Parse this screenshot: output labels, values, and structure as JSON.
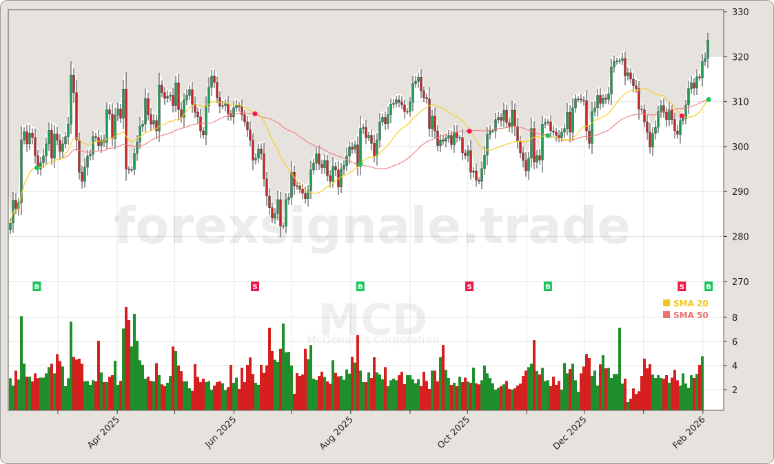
{
  "chart_data": {
    "type": "candlestick",
    "ticker": "MCD",
    "company": "McDonald's Corporation",
    "watermark": "forexsignale.trade",
    "price_axis": {
      "ticks": [
        330,
        320,
        310,
        300,
        290,
        280,
        270
      ],
      "lim": [
        265,
        330
      ]
    },
    "volume_axis": {
      "ticks": [
        8,
        6,
        4,
        2
      ],
      "unit_multiplier": 1000000
    },
    "x_tick_labels": [
      "Apr 2025",
      "Jun 2025",
      "Aug 2025",
      "Oct 2025",
      "Dec 2025",
      "Feb 2026"
    ],
    "grid": true,
    "legend": {
      "placement": "lower-right of price panel",
      "items": [
        {
          "name": "SMA 20",
          "color": "#f5c518"
        },
        {
          "name": "SMA 50",
          "color": "#f07070"
        }
      ]
    },
    "colors": {
      "up": "#1f9d55",
      "down": "#c62828",
      "vol_up": "#1e8f2a",
      "vol_down": "#d61f1f",
      "buy": "#19c45a",
      "sell": "#f0174a",
      "sma20": "#f5d020",
      "sma50": "#f07a7a"
    },
    "close": [
      283.0,
      288.0,
      286.2,
      287.5,
      301.5,
      303.3,
      300.6,
      303.0,
      302.0,
      298.0,
      295.0,
      296.4,
      297.9,
      300.6,
      303.6,
      297.4,
      302.8,
      301.4,
      298.9,
      300.6,
      302.2,
      305.0,
      315.9,
      312.0,
      301.5,
      294.3,
      292.3,
      295.4,
      297.9,
      298.3,
      302.2,
      302.0,
      300.2,
      301.5,
      300.9,
      308.2,
      307.2,
      301.8,
      307.0,
      308.4,
      306.3,
      312.8,
      295.0,
      294.9,
      294.9,
      298.5,
      301.0,
      304.5,
      305.0,
      310.7,
      307.1,
      305.0,
      305.8,
      303.5,
      313.7,
      312.0,
      310.7,
      311.2,
      311.4,
      309.1,
      314.2,
      308.2,
      306.5,
      310.4,
      311.4,
      312.7,
      309.4,
      307.6,
      306.6,
      303.5,
      302.6,
      309.1,
      313.2,
      315.7,
      314.3,
      310.9,
      309.0,
      309.1,
      309.6,
      307.3,
      306.6,
      308.6,
      309.1,
      308.9,
      307.1,
      305.5,
      303.7,
      301.4,
      297.0,
      297.4,
      299.5,
      298.4,
      292.8,
      289.0,
      286.4,
      284.1,
      285.1,
      288.2,
      282.3,
      282.3,
      288.2,
      288.7,
      294.3,
      291.3,
      291.2,
      290.5,
      289.6,
      288.4,
      290.2,
      294.8,
      296.3,
      298.4,
      296.1,
      295.3,
      296.9,
      293.5,
      292.3,
      295.6,
      294.8,
      291.0,
      295.0,
      295.8,
      297.9,
      299.9,
      299.4,
      300.4,
      295.6,
      304.0,
      304.3,
      302.0,
      302.5,
      300.7,
      297.9,
      301.5,
      305.5,
      306.5,
      305.1,
      307.1,
      309.4,
      309.6,
      310.4,
      309.9,
      309.3,
      307.8,
      307.8,
      309.9,
      314.0,
      314.5,
      315.4,
      312.4,
      310.9,
      310.6,
      304.0,
      306.8,
      303.5,
      300.2,
      301.5,
      301.2,
      301.9,
      302.5,
      300.4,
      303.2,
      302.0,
      302.0,
      298.6,
      298.0,
      299.1,
      294.3,
      294.6,
      292.5,
      292.3,
      295.1,
      298.1,
      302.7,
      303.5,
      303.5,
      306.0,
      306.5,
      305.8,
      308.1,
      305.3,
      304.5,
      308.1,
      304.5,
      301.2,
      298.6,
      296.9,
      294.6,
      297.4,
      304.0,
      296.6,
      298.0,
      297.0,
      305.0,
      305.3,
      305.5,
      303.5,
      303.2,
      302.5,
      302.0,
      303.2,
      304.0,
      307.6,
      303.2,
      308.6,
      310.6,
      310.6,
      310.4,
      310.2,
      303.5,
      300.7,
      307.8,
      308.6,
      311.4,
      309.6,
      310.8,
      310.5,
      311.7,
      317.7,
      318.9,
      319.1,
      319.1,
      319.6,
      315.8,
      316.4,
      315.0,
      313.5,
      312.9,
      308.3,
      308.2,
      305.5,
      303.2,
      299.9,
      302.9,
      304.3,
      307.8,
      309.1,
      307.6,
      306.0,
      308.2,
      306.0,
      303.5,
      302.7,
      305.8,
      306.2,
      309.2,
      312.9,
      314.2,
      313.0,
      315.5,
      315.3,
      318.9,
      319.6,
      323.7
    ],
    "volume_millions": [
      2.95,
      2.34,
      3.58,
      2.84,
      8.1,
      4.15,
      3.07,
      3.07,
      2.69,
      3.35,
      2.95,
      3.0,
      3.0,
      3.35,
      3.87,
      4.15,
      3.35,
      4.95,
      4.38,
      3.92,
      2.29,
      2.95,
      7.64,
      4.72,
      4.5,
      4.57,
      4.15,
      2.69,
      2.72,
      2.4,
      2.78,
      2.69,
      6.06,
      3.43,
      2.63,
      2.63,
      3.07,
      3.2,
      4.4,
      2.4,
      2.72,
      7.07,
      8.86,
      7.77,
      5.58,
      8.29,
      6.06,
      4.44,
      4.06,
      2.91,
      3.07,
      2.72,
      2.69,
      4.2,
      3.2,
      2.44,
      2.29,
      2.57,
      3.14,
      5.58,
      5.2,
      4.0,
      3.54,
      2.69,
      2.69,
      2.11,
      1.9,
      4.11,
      3.05,
      2.63,
      2.91,
      2.63,
      2.72,
      2.0,
      2.34,
      2.63,
      2.69,
      2.53,
      1.96,
      2.21,
      4.06,
      2.57,
      3.0,
      2.06,
      3.81,
      2.63,
      4.06,
      4.67,
      3.3,
      2.57,
      2.4,
      4.06,
      3.39,
      4.02,
      7.14,
      5.2,
      4.48,
      4.29,
      5.39,
      7.49,
      5.1,
      5.14,
      4.0,
      1.66,
      3.37,
      3.14,
      3.26,
      5.39,
      4.53,
      5.71,
      2.91,
      2.8,
      3.14,
      3.49,
      3.05,
      2.69,
      2.48,
      4.44,
      3.39,
      3.1,
      3.14,
      2.82,
      3.68,
      3.33,
      4.72,
      4.25,
      6.53,
      3.58,
      2.63,
      2.63,
      3.43,
      2.97,
      4.69,
      3.43,
      3.26,
      2.86,
      3.87,
      2.29,
      2.78,
      2.91,
      2.78,
      3.2,
      3.49,
      2.46,
      3.2,
      3.2,
      2.86,
      2.53,
      2.86,
      2.29,
      3.49,
      2.72,
      2.06,
      3.58,
      3.58,
      2.69,
      4.69,
      5.71,
      3.64,
      2.97,
      2.4,
      2.57,
      2.29,
      3.07,
      2.63,
      3.0,
      2.67,
      2.57,
      3.83,
      2.53,
      2.44,
      2.78,
      4.0,
      3.35,
      2.97,
      2.53,
      2.0,
      2.15,
      2.29,
      2.44,
      2.72,
      2.06,
      2.0,
      2.11,
      2.34,
      2.5,
      3.14,
      3.58,
      3.87,
      4.15,
      6.11,
      3.54,
      3.26,
      3.81,
      2.72,
      2.78,
      2.29,
      3.07,
      2.4,
      2.72,
      2.0,
      4.21,
      3.35,
      3.71,
      4.15,
      2.78,
      1.83,
      3.35,
      3.92,
      4.95,
      4.63,
      3.14,
      3.58,
      2.34,
      4.1,
      4.86,
      3.77,
      3.81,
      2.97,
      3.3,
      3.3,
      7.14,
      2.5,
      2.91,
      0.97,
      1.24,
      2.1,
      1.64,
      1.87,
      3.14,
      4.57,
      3.77,
      4.11,
      3.26,
      2.97,
      3.2,
      2.97,
      2.91,
      3.2,
      2.57,
      3.0,
      3.64,
      2.78,
      2.34,
      3.35,
      2.5,
      2.15,
      3.2,
      2.97,
      3.3,
      4.06,
      4.78
    ],
    "signals": [
      {
        "type": "B",
        "date": "2025-02-18"
      },
      {
        "type": "S",
        "date": "2025-06-12"
      },
      {
        "type": "B",
        "date": "2025-08-06"
      },
      {
        "type": "S",
        "date": "2025-10-02"
      },
      {
        "type": "B",
        "date": "2025-11-12"
      },
      {
        "type": "S",
        "date": "2026-01-21"
      },
      {
        "type": "B",
        "date": "2026-02-04"
      }
    ]
  }
}
